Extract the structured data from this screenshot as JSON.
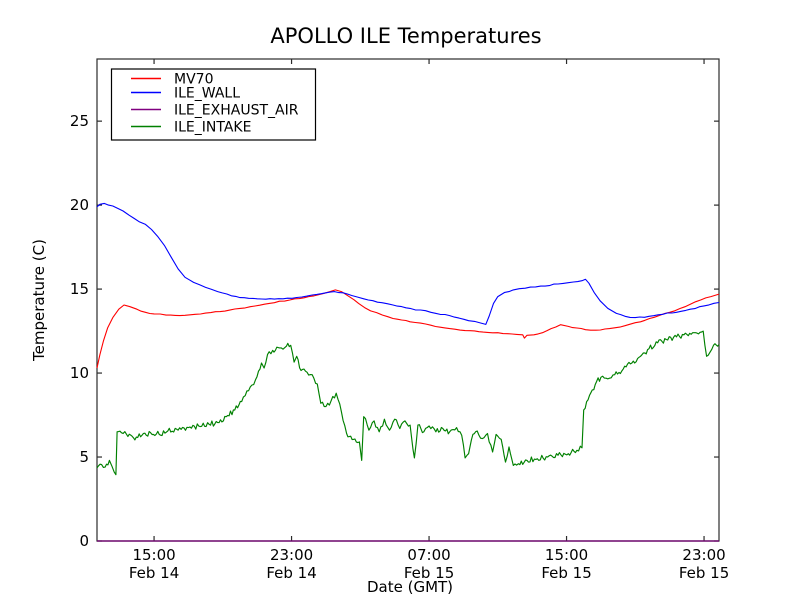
{
  "chart_data": {
    "type": "line",
    "title": "APOLLO ILE Temperatures",
    "xlabel": "Date (GMT)",
    "ylabel": "Temperature (C)",
    "x_axis": {
      "range_hours": [
        11.68,
        47.87
      ],
      "ticks": [
        {
          "hour": 15,
          "time": "15:00",
          "date": "Feb 14"
        },
        {
          "hour": 23,
          "time": "23:00",
          "date": "Feb 14"
        },
        {
          "hour": 31,
          "time": "07:00",
          "date": "Feb 15"
        },
        {
          "hour": 39,
          "time": "15:00",
          "date": "Feb 15"
        },
        {
          "hour": 47,
          "time": "23:00",
          "date": "Feb 15"
        }
      ]
    },
    "y_axis": {
      "range": [
        0,
        28.7
      ],
      "ticks": [
        0,
        5,
        10,
        15,
        20,
        25
      ]
    },
    "legend": {
      "position": "upper left"
    },
    "colors": {
      "frame": "#2b2b2b",
      "background": "#ffffff"
    },
    "series": [
      {
        "name": "MV70",
        "color": "#ff0000",
        "width": 1.1,
        "noise": 0.03,
        "step": 0.25,
        "seed": 7,
        "opacity": 1,
        "points": [
          [
            11.68,
            10.3
          ],
          [
            11.85,
            11.1
          ],
          [
            12.05,
            11.9
          ],
          [
            12.3,
            12.7
          ],
          [
            12.6,
            13.3
          ],
          [
            12.95,
            13.8
          ],
          [
            13.25,
            14.05
          ],
          [
            13.6,
            13.95
          ],
          [
            14.0,
            13.8
          ],
          [
            14.5,
            13.62
          ],
          [
            15.0,
            13.52
          ],
          [
            15.7,
            13.45
          ],
          [
            16.5,
            13.42
          ],
          [
            17.4,
            13.5
          ],
          [
            18.3,
            13.6
          ],
          [
            19.4,
            13.75
          ],
          [
            20.6,
            13.95
          ],
          [
            21.7,
            14.15
          ],
          [
            22.9,
            14.35
          ],
          [
            24.0,
            14.55
          ],
          [
            24.9,
            14.75
          ],
          [
            25.55,
            14.95
          ],
          [
            25.9,
            14.85
          ],
          [
            26.35,
            14.55
          ],
          [
            26.9,
            14.15
          ],
          [
            27.6,
            13.7
          ],
          [
            28.3,
            13.45
          ],
          [
            28.9,
            13.25
          ],
          [
            29.9,
            13.05
          ],
          [
            31.1,
            12.85
          ],
          [
            32.2,
            12.65
          ],
          [
            33.4,
            12.52
          ],
          [
            34.4,
            12.42
          ],
          [
            35.3,
            12.35
          ],
          [
            36.1,
            12.3
          ],
          [
            36.45,
            12.28
          ],
          [
            36.55,
            12.08
          ],
          [
            36.7,
            12.25
          ],
          [
            37.1,
            12.28
          ],
          [
            37.6,
            12.4
          ],
          [
            38.1,
            12.65
          ],
          [
            38.65,
            12.88
          ],
          [
            39.1,
            12.78
          ],
          [
            39.6,
            12.68
          ],
          [
            40.1,
            12.58
          ],
          [
            40.7,
            12.55
          ],
          [
            41.5,
            12.65
          ],
          [
            42.4,
            12.82
          ],
          [
            43.3,
            13.05
          ],
          [
            44.1,
            13.32
          ],
          [
            45.0,
            13.62
          ],
          [
            45.9,
            13.95
          ],
          [
            46.8,
            14.35
          ],
          [
            47.4,
            14.55
          ],
          [
            47.87,
            14.7
          ]
        ]
      },
      {
        "name": "ILE_WALL",
        "color": "#0000ff",
        "width": 1.1,
        "noise": 0.035,
        "step": 0.25,
        "seed": 11,
        "opacity": 1,
        "points": [
          [
            11.68,
            19.9
          ],
          [
            11.85,
            20.05
          ],
          [
            12.1,
            20.1
          ],
          [
            12.35,
            20.0
          ],
          [
            12.6,
            19.95
          ],
          [
            12.9,
            19.8
          ],
          [
            13.2,
            19.65
          ],
          [
            13.55,
            19.4
          ],
          [
            13.85,
            19.2
          ],
          [
            14.15,
            19.0
          ],
          [
            14.5,
            18.85
          ],
          [
            14.85,
            18.55
          ],
          [
            15.2,
            18.15
          ],
          [
            15.6,
            17.6
          ],
          [
            16.0,
            16.9
          ],
          [
            16.4,
            16.2
          ],
          [
            16.8,
            15.7
          ],
          [
            17.3,
            15.4
          ],
          [
            18.0,
            15.1
          ],
          [
            18.7,
            14.85
          ],
          [
            19.5,
            14.6
          ],
          [
            20.5,
            14.45
          ],
          [
            21.5,
            14.4
          ],
          [
            22.5,
            14.42
          ],
          [
            23.3,
            14.5
          ],
          [
            24.2,
            14.65
          ],
          [
            25.0,
            14.78
          ],
          [
            25.5,
            14.85
          ],
          [
            26.0,
            14.78
          ],
          [
            26.5,
            14.62
          ],
          [
            27.2,
            14.42
          ],
          [
            28.0,
            14.22
          ],
          [
            28.9,
            14.05
          ],
          [
            29.9,
            13.85
          ],
          [
            31.1,
            13.62
          ],
          [
            32.2,
            13.42
          ],
          [
            33.3,
            13.12
          ],
          [
            34.0,
            12.98
          ],
          [
            34.3,
            12.9
          ],
          [
            34.5,
            13.4
          ],
          [
            34.75,
            14.15
          ],
          [
            35.0,
            14.55
          ],
          [
            35.4,
            14.8
          ],
          [
            35.9,
            14.95
          ],
          [
            36.6,
            15.05
          ],
          [
            37.5,
            15.18
          ],
          [
            38.5,
            15.3
          ],
          [
            39.4,
            15.42
          ],
          [
            39.9,
            15.5
          ],
          [
            40.1,
            15.58
          ],
          [
            40.3,
            15.35
          ],
          [
            40.6,
            14.8
          ],
          [
            40.95,
            14.3
          ],
          [
            41.4,
            13.85
          ],
          [
            41.9,
            13.55
          ],
          [
            42.4,
            13.38
          ],
          [
            43.0,
            13.3
          ],
          [
            43.8,
            13.38
          ],
          [
            44.6,
            13.5
          ],
          [
            45.4,
            13.62
          ],
          [
            46.2,
            13.8
          ],
          [
            47.0,
            14.0
          ],
          [
            47.87,
            14.2
          ]
        ]
      },
      {
        "name": "ILE_EXHAUST_AIR",
        "color": "#800080",
        "width": 1.4,
        "noise": 0,
        "step": 10,
        "seed": 3,
        "opacity": 0.8,
        "points": [
          [
            11.68,
            0
          ],
          [
            47.87,
            0
          ]
        ]
      },
      {
        "name": "ILE_INTAKE",
        "color": "#008000",
        "width": 1.15,
        "noise": 0.16,
        "step": 0.08,
        "seed": 5,
        "opacity": 1,
        "points": [
          [
            11.68,
            4.35
          ],
          [
            11.95,
            4.55
          ],
          [
            12.15,
            4.4
          ],
          [
            12.4,
            4.8
          ],
          [
            12.55,
            4.45
          ],
          [
            12.68,
            4.1
          ],
          [
            12.78,
            3.95
          ],
          [
            12.85,
            6.5
          ],
          [
            13.1,
            6.45
          ],
          [
            13.4,
            6.35
          ],
          [
            13.8,
            6.15
          ],
          [
            14.3,
            6.3
          ],
          [
            14.8,
            6.45
          ],
          [
            15.3,
            6.35
          ],
          [
            15.8,
            6.55
          ],
          [
            16.4,
            6.6
          ],
          [
            17.0,
            6.75
          ],
          [
            17.6,
            6.85
          ],
          [
            18.2,
            6.95
          ],
          [
            18.7,
            7.05
          ],
          [
            19.2,
            7.4
          ],
          [
            19.7,
            7.8
          ],
          [
            20.1,
            8.3
          ],
          [
            20.5,
            8.95
          ],
          [
            20.9,
            9.6
          ],
          [
            21.25,
            10.6
          ],
          [
            21.4,
            10.3
          ],
          [
            21.6,
            11.1
          ],
          [
            21.9,
            11.35
          ],
          [
            22.3,
            11.5
          ],
          [
            22.7,
            11.6
          ],
          [
            22.95,
            11.65
          ],
          [
            23.15,
            10.65
          ],
          [
            23.3,
            11.0
          ],
          [
            23.55,
            10.15
          ],
          [
            23.9,
            10.05
          ],
          [
            24.2,
            9.9
          ],
          [
            24.5,
            9.35
          ],
          [
            24.7,
            8.2
          ],
          [
            25.0,
            8.0
          ],
          [
            25.3,
            8.35
          ],
          [
            25.6,
            8.8
          ],
          [
            25.9,
            7.7
          ],
          [
            26.2,
            6.4
          ],
          [
            26.6,
            6.05
          ],
          [
            26.95,
            5.9
          ],
          [
            27.08,
            4.8
          ],
          [
            27.2,
            7.4
          ],
          [
            27.5,
            6.6
          ],
          [
            27.8,
            7.15
          ],
          [
            28.1,
            6.5
          ],
          [
            28.4,
            7.25
          ],
          [
            28.7,
            6.6
          ],
          [
            29.0,
            7.25
          ],
          [
            29.3,
            6.7
          ],
          [
            29.6,
            7.15
          ],
          [
            29.9,
            6.9
          ],
          [
            30.15,
            4.95
          ],
          [
            30.35,
            6.9
          ],
          [
            30.7,
            6.5
          ],
          [
            31.0,
            6.85
          ],
          [
            31.4,
            6.5
          ],
          [
            31.8,
            6.7
          ],
          [
            32.2,
            6.5
          ],
          [
            32.6,
            6.75
          ],
          [
            32.9,
            6.3
          ],
          [
            33.1,
            4.95
          ],
          [
            33.3,
            5.2
          ],
          [
            33.55,
            6.35
          ],
          [
            33.8,
            6.55
          ],
          [
            34.1,
            6.1
          ],
          [
            34.4,
            6.4
          ],
          [
            34.7,
            5.3
          ],
          [
            34.9,
            6.35
          ],
          [
            35.2,
            6.05
          ],
          [
            35.45,
            4.7
          ],
          [
            35.65,
            5.6
          ],
          [
            35.9,
            4.5
          ],
          [
            36.2,
            4.6
          ],
          [
            36.7,
            4.8
          ],
          [
            37.3,
            4.9
          ],
          [
            37.9,
            5.0
          ],
          [
            38.5,
            5.1
          ],
          [
            39.1,
            5.2
          ],
          [
            39.6,
            5.4
          ],
          [
            39.9,
            5.55
          ],
          [
            40.0,
            7.8
          ],
          [
            40.25,
            8.4
          ],
          [
            40.5,
            9.0
          ],
          [
            40.75,
            9.5
          ],
          [
            41.0,
            9.75
          ],
          [
            41.4,
            9.65
          ],
          [
            41.8,
            9.9
          ],
          [
            42.3,
            10.25
          ],
          [
            42.8,
            10.6
          ],
          [
            43.3,
            11.0
          ],
          [
            43.8,
            11.45
          ],
          [
            44.3,
            11.8
          ],
          [
            44.8,
            12.0
          ],
          [
            45.4,
            12.15
          ],
          [
            46.0,
            12.3
          ],
          [
            46.5,
            12.4
          ],
          [
            46.95,
            12.5
          ],
          [
            47.15,
            11.0
          ],
          [
            47.35,
            11.25
          ],
          [
            47.55,
            11.65
          ],
          [
            47.87,
            11.7
          ]
        ]
      }
    ]
  }
}
